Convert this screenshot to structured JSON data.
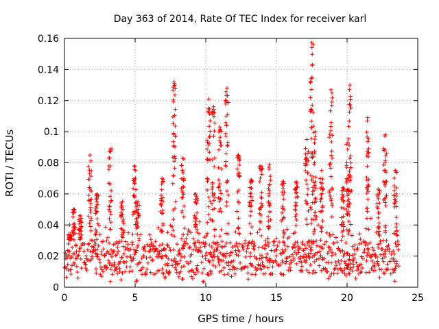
{
  "chart_data": {
    "type": "scatter",
    "title": "Day 363 of 2014, Rate Of TEC Index for receiver karl",
    "xlabel": "GPS time / hours",
    "ylabel": "ROTI / TECUs",
    "xlim": [
      0,
      25
    ],
    "ylim": [
      0,
      0.16
    ],
    "xticks": [
      0,
      5,
      10,
      15,
      20,
      25
    ],
    "xtick_labels": [
      "0",
      "5",
      "10",
      "15",
      "20",
      "25"
    ],
    "yticks": [
      0,
      0.02,
      0.04,
      0.06,
      0.08,
      0.1,
      0.12,
      0.14,
      0.16
    ],
    "ytick_labels": [
      "0",
      "0.02",
      "0.04",
      "0.06",
      "0.08",
      "0.1",
      "0.12",
      "0.14",
      "0.16"
    ],
    "grid": true,
    "marker": "+",
    "color": "#ff0000",
    "series": [
      {
        "name": "ROTI",
        "baseline": {
          "x_start": 0,
          "x_end": 23.65,
          "x_step": 0.04,
          "y_typical_low": 0.008,
          "y_typical_high": 0.03
        },
        "spikes": [
          {
            "x": 0.4,
            "peak": 0.034
          },
          {
            "x": 0.65,
            "peak": 0.05
          },
          {
            "x": 1.1,
            "peak": 0.046
          },
          {
            "x": 1.8,
            "peak": 0.085
          },
          {
            "x": 2.3,
            "peak": 0.06
          },
          {
            "x": 3.25,
            "peak": 0.089
          },
          {
            "x": 4.1,
            "peak": 0.055
          },
          {
            "x": 4.95,
            "peak": 0.078
          },
          {
            "x": 5.2,
            "peak": 0.055
          },
          {
            "x": 6.9,
            "peak": 0.07
          },
          {
            "x": 7.75,
            "peak": 0.132
          },
          {
            "x": 8.35,
            "peak": 0.083
          },
          {
            "x": 9.3,
            "peak": 0.06
          },
          {
            "x": 10.2,
            "peak": 0.121
          },
          {
            "x": 10.55,
            "peak": 0.116
          },
          {
            "x": 11.0,
            "peak": 0.103
          },
          {
            "x": 11.5,
            "peak": 0.128
          },
          {
            "x": 12.3,
            "peak": 0.085
          },
          {
            "x": 13.2,
            "peak": 0.069
          },
          {
            "x": 13.9,
            "peak": 0.078
          },
          {
            "x": 14.5,
            "peak": 0.079
          },
          {
            "x": 15.45,
            "peak": 0.068
          },
          {
            "x": 16.4,
            "peak": 0.068
          },
          {
            "x": 17.15,
            "peak": 0.095
          },
          {
            "x": 17.5,
            "peak": 0.157
          },
          {
            "x": 17.75,
            "peak": 0.1
          },
          {
            "x": 18.2,
            "peak": 0.075
          },
          {
            "x": 18.85,
            "peak": 0.127
          },
          {
            "x": 19.7,
            "peak": 0.064
          },
          {
            "x": 20.05,
            "peak": 0.093
          },
          {
            "x": 20.2,
            "peak": 0.13
          },
          {
            "x": 21.45,
            "peak": 0.109
          },
          {
            "x": 22.2,
            "peak": 0.063
          },
          {
            "x": 22.7,
            "peak": 0.098
          },
          {
            "x": 23.4,
            "peak": 0.075
          }
        ]
      }
    ]
  }
}
